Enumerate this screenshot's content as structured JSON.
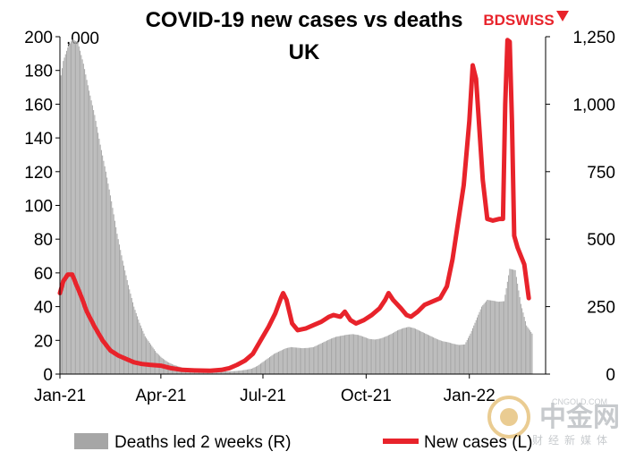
{
  "chart_data": {
    "type": "bar+line",
    "title": "COVID-19 new cases vs deaths",
    "subtitle": "UK",
    "left_axis_unit": ",000",
    "x_tick_labels": [
      "Jan-21",
      "Apr-21",
      "Jul-21",
      "Oct-21",
      "Jan-22"
    ],
    "x_tick_dates": [
      "2021-01-01",
      "2021-04-01",
      "2021-07-01",
      "2021-10-01",
      "2022-01-01"
    ],
    "xlim": [
      "2021-01-01",
      "2022-03-10"
    ],
    "left_axis": {
      "ylim": [
        0,
        200
      ],
      "ticks": [
        0,
        20,
        40,
        60,
        80,
        100,
        120,
        140,
        160,
        180,
        200
      ]
    },
    "right_axis": {
      "ylim": [
        0,
        1250
      ],
      "ticks": [
        0,
        250,
        500,
        750,
        1000,
        1250
      ],
      "tick_labels": [
        "0",
        "250",
        "500",
        "750",
        "1,000",
        "1,250"
      ]
    },
    "series": [
      {
        "name": "Deaths led 2 weeks (R)",
        "kind": "bar",
        "axis": "right",
        "color": "#a6a6a6",
        "points": [
          [
            "2021-01-01",
            1080
          ],
          [
            "2021-01-04",
            1160
          ],
          [
            "2021-01-08",
            1210
          ],
          [
            "2021-01-12",
            1240
          ],
          [
            "2021-01-17",
            1230
          ],
          [
            "2021-01-22",
            1150
          ],
          [
            "2021-01-27",
            1050
          ],
          [
            "2021-02-01",
            960
          ],
          [
            "2021-02-06",
            850
          ],
          [
            "2021-02-11",
            750
          ],
          [
            "2021-02-16",
            640
          ],
          [
            "2021-02-21",
            520
          ],
          [
            "2021-02-26",
            420
          ],
          [
            "2021-03-03",
            330
          ],
          [
            "2021-03-08",
            250
          ],
          [
            "2021-03-13",
            190
          ],
          [
            "2021-03-18",
            140
          ],
          [
            "2021-03-23",
            110
          ],
          [
            "2021-03-28",
            80
          ],
          [
            "2021-04-02",
            60
          ],
          [
            "2021-04-07",
            45
          ],
          [
            "2021-04-12",
            35
          ],
          [
            "2021-04-17",
            28
          ],
          [
            "2021-04-22",
            22
          ],
          [
            "2021-04-27",
            18
          ],
          [
            "2021-05-02",
            15
          ],
          [
            "2021-05-07",
            12
          ],
          [
            "2021-05-12",
            11
          ],
          [
            "2021-05-17",
            10
          ],
          [
            "2021-05-22",
            10
          ],
          [
            "2021-05-27",
            10
          ],
          [
            "2021-06-01",
            10
          ],
          [
            "2021-06-06",
            11
          ],
          [
            "2021-06-11",
            13
          ],
          [
            "2021-06-16",
            16
          ],
          [
            "2021-06-21",
            20
          ],
          [
            "2021-06-26",
            30
          ],
          [
            "2021-07-01",
            45
          ],
          [
            "2021-07-06",
            60
          ],
          [
            "2021-07-11",
            75
          ],
          [
            "2021-07-16",
            85
          ],
          [
            "2021-07-21",
            95
          ],
          [
            "2021-07-26",
            100
          ],
          [
            "2021-07-31",
            98
          ],
          [
            "2021-08-05",
            96
          ],
          [
            "2021-08-10",
            97
          ],
          [
            "2021-08-15",
            100
          ],
          [
            "2021-08-20",
            110
          ],
          [
            "2021-08-25",
            120
          ],
          [
            "2021-08-30",
            130
          ],
          [
            "2021-09-04",
            138
          ],
          [
            "2021-09-09",
            142
          ],
          [
            "2021-09-14",
            146
          ],
          [
            "2021-09-19",
            148
          ],
          [
            "2021-09-24",
            145
          ],
          [
            "2021-09-29",
            138
          ],
          [
            "2021-10-04",
            130
          ],
          [
            "2021-10-09",
            128
          ],
          [
            "2021-10-14",
            132
          ],
          [
            "2021-10-19",
            140
          ],
          [
            "2021-10-24",
            150
          ],
          [
            "2021-10-29",
            162
          ],
          [
            "2021-11-03",
            170
          ],
          [
            "2021-11-08",
            175
          ],
          [
            "2021-11-13",
            170
          ],
          [
            "2021-11-18",
            160
          ],
          [
            "2021-11-23",
            150
          ],
          [
            "2021-11-28",
            140
          ],
          [
            "2021-12-03",
            130
          ],
          [
            "2021-12-08",
            122
          ],
          [
            "2021-12-13",
            118
          ],
          [
            "2021-12-18",
            112
          ],
          [
            "2021-12-23",
            108
          ],
          [
            "2021-12-28",
            110
          ],
          [
            "2022-01-02",
            150
          ],
          [
            "2022-01-07",
            200
          ],
          [
            "2022-01-12",
            250
          ],
          [
            "2022-01-17",
            275
          ],
          [
            "2022-01-22",
            272
          ],
          [
            "2022-01-27",
            268
          ],
          [
            "2022-02-01",
            270
          ],
          [
            "2022-02-06",
            390
          ],
          [
            "2022-02-11",
            385
          ],
          [
            "2022-02-16",
            260
          ],
          [
            "2022-02-21",
            180
          ],
          [
            "2022-02-26",
            150
          ]
        ]
      },
      {
        "name": "New cases (L)",
        "kind": "line",
        "axis": "left",
        "color": "#e8232b",
        "points": [
          [
            "2021-01-01",
            48
          ],
          [
            "2021-01-04",
            55
          ],
          [
            "2021-01-08",
            59
          ],
          [
            "2021-01-12",
            59
          ],
          [
            "2021-01-15",
            54
          ],
          [
            "2021-01-20",
            46
          ],
          [
            "2021-01-25",
            37
          ],
          [
            "2021-02-01",
            28
          ],
          [
            "2021-02-08",
            20
          ],
          [
            "2021-02-15",
            14
          ],
          [
            "2021-02-22",
            11
          ],
          [
            "2021-03-01",
            9
          ],
          [
            "2021-03-08",
            7
          ],
          [
            "2021-03-15",
            6
          ],
          [
            "2021-03-22",
            5.5
          ],
          [
            "2021-04-01",
            5
          ],
          [
            "2021-04-10",
            3.5
          ],
          [
            "2021-04-20",
            2.5
          ],
          [
            "2021-05-01",
            2.2
          ],
          [
            "2021-05-15",
            2
          ],
          [
            "2021-05-25",
            2.5
          ],
          [
            "2021-06-01",
            3.5
          ],
          [
            "2021-06-08",
            5.5
          ],
          [
            "2021-06-15",
            8
          ],
          [
            "2021-06-22",
            12
          ],
          [
            "2021-06-29",
            20
          ],
          [
            "2021-07-06",
            28
          ],
          [
            "2021-07-12",
            36
          ],
          [
            "2021-07-17",
            45
          ],
          [
            "2021-07-19",
            48
          ],
          [
            "2021-07-22",
            44
          ],
          [
            "2021-07-27",
            30
          ],
          [
            "2021-08-01",
            26
          ],
          [
            "2021-08-08",
            27
          ],
          [
            "2021-08-15",
            29
          ],
          [
            "2021-08-22",
            31
          ],
          [
            "2021-08-29",
            34
          ],
          [
            "2021-09-02",
            35
          ],
          [
            "2021-09-08",
            34
          ],
          [
            "2021-09-12",
            37
          ],
          [
            "2021-09-17",
            32
          ],
          [
            "2021-09-22",
            30
          ],
          [
            "2021-09-29",
            32
          ],
          [
            "2021-10-06",
            35
          ],
          [
            "2021-10-13",
            39
          ],
          [
            "2021-10-18",
            44
          ],
          [
            "2021-10-21",
            48
          ],
          [
            "2021-10-25",
            44
          ],
          [
            "2021-11-01",
            39
          ],
          [
            "2021-11-06",
            35
          ],
          [
            "2021-11-10",
            34
          ],
          [
            "2021-11-16",
            37
          ],
          [
            "2021-11-22",
            41
          ],
          [
            "2021-11-29",
            43
          ],
          [
            "2021-12-06",
            45
          ],
          [
            "2021-12-12",
            52
          ],
          [
            "2021-12-17",
            68
          ],
          [
            "2021-12-22",
            90
          ],
          [
            "2021-12-27",
            112
          ],
          [
            "2022-01-01",
            150
          ],
          [
            "2022-01-04",
            183
          ],
          [
            "2022-01-07",
            175
          ],
          [
            "2022-01-10",
            145
          ],
          [
            "2022-01-13",
            115
          ],
          [
            "2022-01-17",
            92
          ],
          [
            "2022-01-22",
            91
          ],
          [
            "2022-01-28",
            92
          ],
          [
            "2022-01-31",
            92
          ],
          [
            "2022-02-02",
            160
          ],
          [
            "2022-02-04",
            198
          ],
          [
            "2022-02-06",
            197
          ],
          [
            "2022-02-08",
            150
          ],
          [
            "2022-02-10",
            82
          ],
          [
            "2022-02-13",
            75
          ],
          [
            "2022-02-16",
            70
          ],
          [
            "2022-02-19",
            65
          ],
          [
            "2022-02-21",
            55
          ],
          [
            "2022-02-23",
            45
          ]
        ]
      }
    ],
    "legend_position": "bottom",
    "grid": false
  },
  "brand": {
    "logo_text": "BDSWISS",
    "logo_color": "#e8232b"
  },
  "watermark": {
    "name": "中金网",
    "url": "CNGOLD.COM",
    "tagline": "财经新媒体"
  }
}
